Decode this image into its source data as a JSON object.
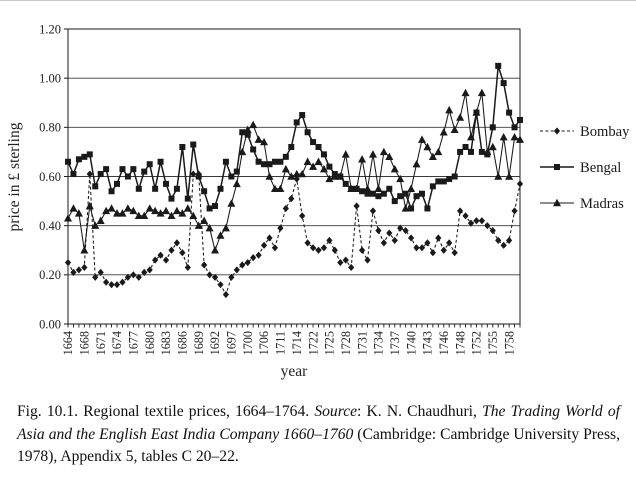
{
  "chart_data": {
    "type": "line",
    "title": "",
    "xlabel": "year",
    "ylabel": "price in £ sterling",
    "ylim": [
      0,
      1.2
    ],
    "grid": "horizontal",
    "legend_position": "right",
    "line_color": "#1a1a1a",
    "ytick_labels": [
      "0.00",
      "0.20",
      "0.40",
      "0.60",
      "0.80",
      "1.00",
      "1.20"
    ],
    "x_label_every_n_points": 3,
    "x_tick_labels": [
      "1664",
      "1668",
      "1671",
      "1674",
      "1677",
      "1680",
      "1683",
      "1686",
      "1689",
      "1692",
      "1697",
      "1700",
      "1706",
      "1711",
      "1714",
      "1722",
      "1725",
      "1728",
      "1731",
      "1734",
      "1737",
      "1740",
      "1743",
      "1746",
      "1748",
      "1752",
      "1755",
      "1758"
    ],
    "series": [
      {
        "name": "Bombay",
        "marker": "diamond",
        "line_style": "dashed",
        "values": [
          0.25,
          0.21,
          0.22,
          0.23,
          0.61,
          0.19,
          0.21,
          0.17,
          0.16,
          0.16,
          0.17,
          0.19,
          0.2,
          0.19,
          0.21,
          0.22,
          0.26,
          0.28,
          0.26,
          0.3,
          0.33,
          0.29,
          0.23,
          0.61,
          0.61,
          0.24,
          0.2,
          0.19,
          0.16,
          0.12,
          0.19,
          0.22,
          0.24,
          0.25,
          0.27,
          0.28,
          0.32,
          0.35,
          0.31,
          0.39,
          0.47,
          0.51,
          0.59,
          0.44,
          0.33,
          0.31,
          0.3,
          0.31,
          0.34,
          0.3,
          0.25,
          0.26,
          0.23,
          0.48,
          0.3,
          0.26,
          0.46,
          0.38,
          0.33,
          0.37,
          0.34,
          0.39,
          0.38,
          0.35,
          0.31,
          0.31,
          0.33,
          0.29,
          0.35,
          0.3,
          0.33,
          0.29,
          0.46,
          0.44,
          0.41,
          0.42,
          0.42,
          0.4,
          0.38,
          0.34,
          0.32,
          0.34,
          0.46,
          0.57
        ]
      },
      {
        "name": "Bengal",
        "marker": "square",
        "line_style": "solid",
        "values": [
          0.66,
          0.61,
          0.67,
          0.68,
          0.69,
          0.56,
          0.61,
          0.63,
          0.54,
          0.57,
          0.63,
          0.6,
          0.63,
          0.55,
          0.62,
          0.65,
          0.55,
          0.66,
          0.57,
          0.51,
          0.55,
          0.72,
          0.51,
          0.73,
          0.6,
          0.54,
          0.47,
          0.48,
          0.55,
          0.66,
          0.6,
          0.62,
          0.78,
          0.77,
          0.71,
          0.66,
          0.65,
          0.65,
          0.66,
          0.66,
          0.68,
          0.72,
          0.82,
          0.85,
          0.78,
          0.74,
          0.72,
          0.69,
          0.64,
          0.61,
          0.6,
          0.57,
          0.55,
          0.55,
          0.54,
          0.53,
          0.53,
          0.52,
          0.53,
          0.55,
          0.5,
          0.52,
          0.53,
          0.47,
          0.52,
          0.53,
          0.47,
          0.56,
          0.58,
          0.58,
          0.59,
          0.6,
          0.7,
          0.72,
          0.7,
          0.86,
          0.7,
          0.69,
          0.8,
          1.05,
          0.98,
          0.86,
          0.8,
          0.83
        ]
      },
      {
        "name": "Madras",
        "marker": "triangle",
        "line_style": "solid",
        "values": [
          0.43,
          0.47,
          0.45,
          0.3,
          0.48,
          0.4,
          0.42,
          0.46,
          0.47,
          0.45,
          0.45,
          0.47,
          0.46,
          0.44,
          0.44,
          0.47,
          0.46,
          0.45,
          0.46,
          0.44,
          0.46,
          0.45,
          0.47,
          0.44,
          0.4,
          0.42,
          0.39,
          0.3,
          0.36,
          0.39,
          0.49,
          0.57,
          0.7,
          0.79,
          0.81,
          0.75,
          0.74,
          0.6,
          0.55,
          0.55,
          0.63,
          0.6,
          0.61,
          0.61,
          0.66,
          0.64,
          0.66,
          0.63,
          0.59,
          0.6,
          0.6,
          0.69,
          0.55,
          0.55,
          0.67,
          0.55,
          0.69,
          0.55,
          0.7,
          0.68,
          0.63,
          0.59,
          0.47,
          0.55,
          0.65,
          0.75,
          0.72,
          0.68,
          0.7,
          0.78,
          0.87,
          0.79,
          0.84,
          0.94,
          0.76,
          0.86,
          0.94,
          0.7,
          0.72,
          0.6,
          0.76,
          0.6,
          0.76,
          0.75
        ]
      }
    ]
  },
  "caption": {
    "segments": [
      {
        "text": "Fig. 10.1.  Regional textile prices, 1664–1764. ",
        "italic": false
      },
      {
        "text": "Source",
        "italic": true
      },
      {
        "text": ": K. N. Chaudhuri, ",
        "italic": false
      },
      {
        "text": "The Trading World of Asia and the English East India Company 1660–1760",
        "italic": true
      },
      {
        "text": " (Cambridge: Cambridge University Press, 1978), Appendix 5, tables C 20–22.",
        "italic": false
      }
    ]
  }
}
